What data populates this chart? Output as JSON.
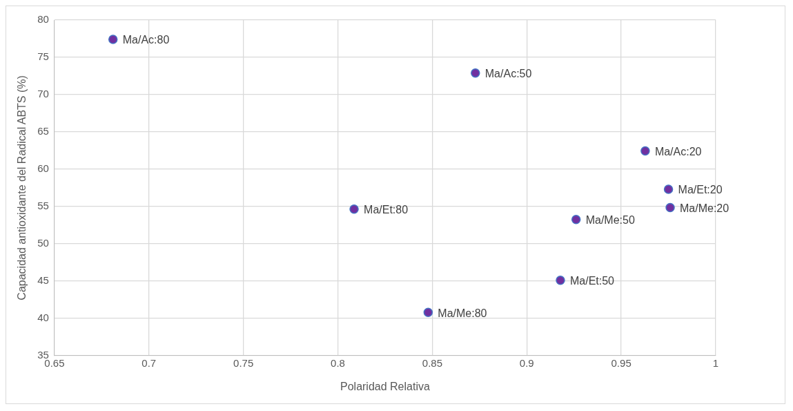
{
  "chart_data": {
    "type": "scatter",
    "xlabel": "Polaridad Relativa",
    "ylabel": "Capacidad antioxidante del Radical ABTS (%)",
    "x": [
      0.681,
      0.8728,
      0.9627,
      0.975,
      0.9759,
      0.9261,
      0.9178,
      0.8086,
      0.8478
    ],
    "series": [
      {
        "color": "#7030a0",
        "values": [
          77.4,
          72.9,
          62.45,
          57.3,
          54.85,
          53.25,
          45.1,
          54.65,
          40.8
        ]
      }
    ],
    "xlim": [
      0.65,
      1
    ],
    "xticks": [
      0.65,
      0.7,
      0.75,
      0.8,
      0.85,
      0.9,
      0.95,
      1
    ],
    "ylim": [
      35,
      80
    ],
    "yticks": [
      35,
      40,
      45,
      50,
      55,
      60,
      65,
      70,
      75,
      80
    ],
    "grid": true,
    "legend": false,
    "marker": "circle",
    "annotations": [
      {
        "text": "Ma/Ac:80",
        "x": 0.681,
        "y": 77.4
      },
      {
        "text": "Ma/Ac:50",
        "x": 0.8728,
        "y": 72.9
      },
      {
        "text": "Ma/Ac:20",
        "x": 0.9627,
        "y": 62.45
      },
      {
        "text": "Ma/Et:20",
        "x": 0.975,
        "y": 57.3
      },
      {
        "text": "Ma/Me:20",
        "x": 0.9759,
        "y": 54.85
      },
      {
        "text": "Ma/Me:50",
        "x": 0.9261,
        "y": 53.25
      },
      {
        "text": "Ma/Et:50",
        "x": 0.9178,
        "y": 45.1
      },
      {
        "text": "Ma/Et:80",
        "x": 0.8086,
        "y": 54.65
      },
      {
        "text": "Ma/Me:80",
        "x": 0.8478,
        "y": 40.8
      }
    ]
  }
}
